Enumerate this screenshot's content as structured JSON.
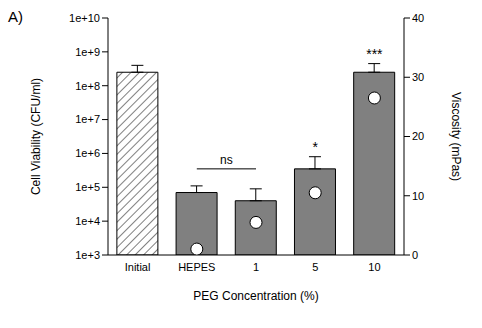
{
  "chart_data": {
    "type": "bar",
    "title": "A)",
    "categories": [
      "Initial",
      "HEPES",
      "1",
      "5",
      "10"
    ],
    "x_label": "PEG Concentration (%)",
    "y_label": "Cell Viability (CFU/ml)",
    "y2_label": "Viscosity (mPas)",
    "log": "y",
    "ylim": [
      1000,
      10000000000
    ],
    "yticks": [
      {
        "value": 1000,
        "label": "1e+3"
      },
      {
        "value": 10000,
        "label": "1e+4"
      },
      {
        "value": 100000,
        "label": "1e+5"
      },
      {
        "value": 1000000,
        "label": "1e+6"
      },
      {
        "value": 10000000,
        "label": "1e+7"
      },
      {
        "value": 100000000,
        "label": "1e+8"
      },
      {
        "value": 1000000000,
        "label": "1e+9"
      },
      {
        "value": 10000000000,
        "label": "1e+10"
      }
    ],
    "y2lim": [
      0,
      40
    ],
    "y2ticks": [
      0,
      10,
      20,
      30,
      40
    ],
    "series": [
      {
        "type": "bar",
        "colors": [
          "#ffffff",
          "#808080",
          "#808080",
          "#808080",
          "#808080"
        ],
        "values": [
          250000000,
          70000,
          40000,
          350000,
          250000000
        ],
        "error": [
          150000000,
          40000,
          50000,
          450000,
          200000000
        ]
      },
      {
        "type": "scatter",
        "axis": "y2",
        "color": "#ffffff",
        "marker": "circle",
        "values": [
          null,
          1,
          5.5,
          10.5,
          26.5
        ]
      }
    ],
    "annotations": [
      {
        "text": "ns",
        "x": [
          "HEPES",
          "1"
        ],
        "y": 350000
      },
      {
        "text": "*",
        "x": "5",
        "y": 800000
      },
      {
        "text": "***",
        "x": "10",
        "y": 450000000
      }
    ]
  }
}
